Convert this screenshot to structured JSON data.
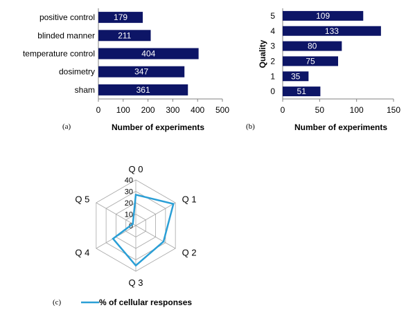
{
  "panel_labels": {
    "a": "(a)",
    "b": "(b)",
    "c": "(c)"
  },
  "colors": {
    "bar": "#0d1566",
    "bar_label": "#ffffff",
    "line": "#2a9fd6",
    "axis": "#808080",
    "grid": "#a6a6a6",
    "text": "#000000"
  },
  "chart_data": [
    {
      "type": "bar",
      "orientation": "horizontal",
      "categories": [
        "positive control",
        "blinded manner",
        "temperature control",
        "dosimetry",
        "sham"
      ],
      "values": [
        179,
        211,
        404,
        347,
        361
      ],
      "xlabel": "Number of experiments",
      "ylabel": "",
      "xlim": [
        0,
        500
      ],
      "xticks": [
        "0",
        "100",
        "200",
        "300",
        "400",
        "500"
      ],
      "data_labels": [
        "179",
        "211",
        "404",
        "347",
        "361"
      ],
      "grid": false
    },
    {
      "type": "bar",
      "orientation": "horizontal",
      "categories": [
        "5",
        "4",
        "3",
        "2",
        "1",
        "0"
      ],
      "values": [
        109,
        133,
        80,
        75,
        35,
        51
      ],
      "xlabel": "Number of experiments",
      "ylabel": "Quality",
      "xlim": [
        0,
        150
      ],
      "xticks": [
        "0",
        "50",
        "100",
        "150"
      ],
      "data_labels": [
        "109",
        "133",
        "80",
        "75",
        "35",
        "51"
      ],
      "grid": false
    },
    {
      "type": "radar",
      "axes": [
        "Q 0",
        "Q 1",
        "Q 2",
        "Q 3",
        "Q 4",
        "Q 5"
      ],
      "rlim": [
        0,
        40
      ],
      "rticks": [
        "0",
        "10",
        "20",
        "30",
        "40"
      ],
      "series": [
        {
          "name": "% of cellular responses",
          "values": [
            27,
            38,
            28,
            35,
            23,
            3
          ]
        }
      ],
      "legend": "bottom"
    }
  ]
}
